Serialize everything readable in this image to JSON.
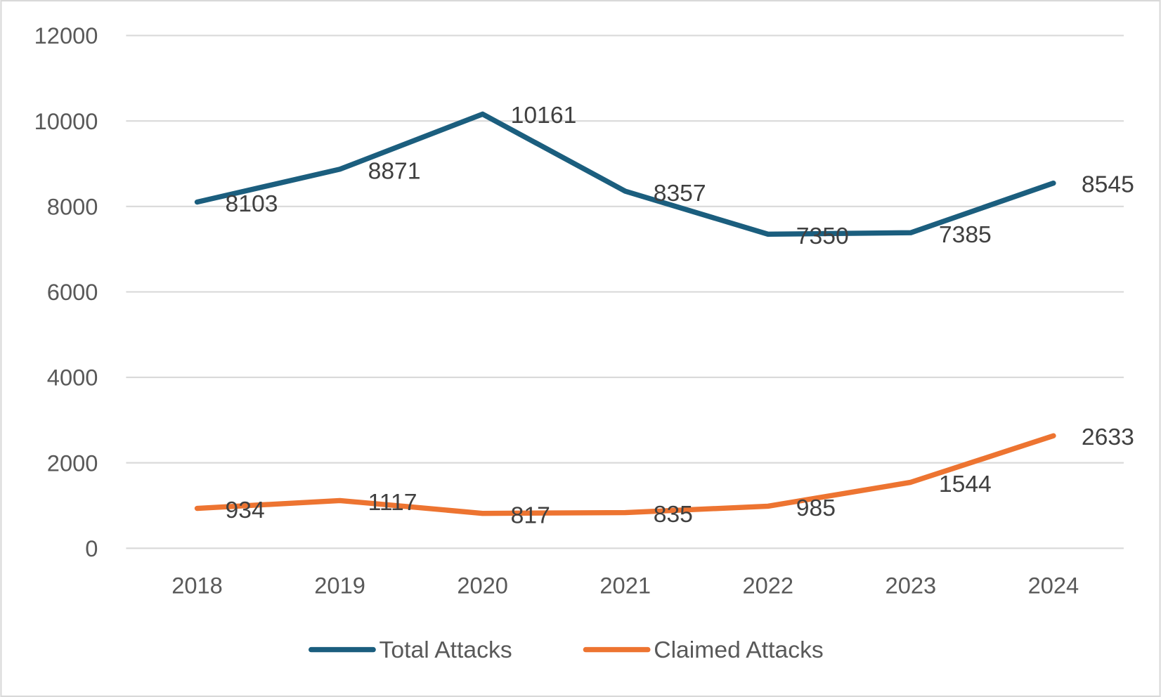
{
  "chart_data": {
    "type": "line",
    "title": "",
    "xlabel": "",
    "ylabel": "",
    "categories": [
      "2018",
      "2019",
      "2020",
      "2021",
      "2022",
      "2023",
      "2024"
    ],
    "ylim": [
      0,
      12000
    ],
    "yticks": [
      0,
      2000,
      4000,
      6000,
      8000,
      10000,
      12000
    ],
    "grid": true,
    "legend": "bottom",
    "series": [
      {
        "name": "Total Attacks",
        "color": "#1b5e7e",
        "values": [
          8103,
          8871,
          10161,
          8357,
          7350,
          7385,
          8545
        ]
      },
      {
        "name": "Claimed Attacks",
        "color": "#ed7431",
        "values": [
          934,
          1117,
          817,
          835,
          985,
          1544,
          2633
        ]
      }
    ]
  }
}
